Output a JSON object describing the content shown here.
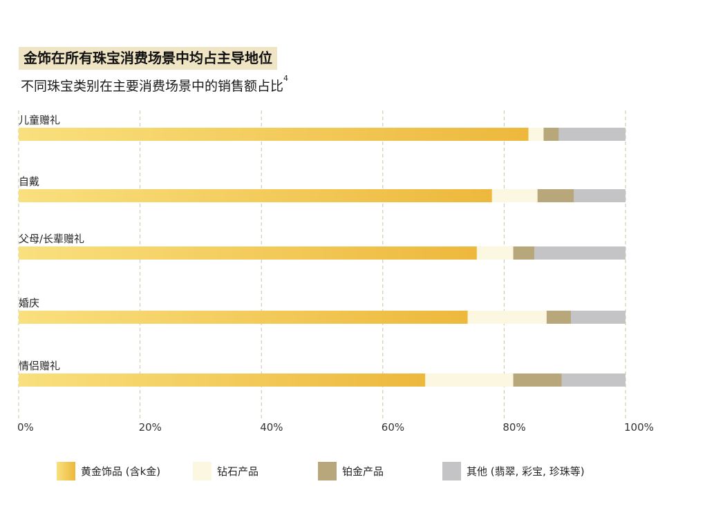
{
  "header": {
    "title": "金饰在所有珠宝消费场景中均占主导地位",
    "subtitle": "不同珠宝类别在主要消费场景中的销售额占比",
    "footnote": "4"
  },
  "chart_data": {
    "type": "bar",
    "orientation": "horizontal",
    "stacked": true,
    "title": "不同珠宝类别在主要消费场景中的销售额占比",
    "categories": [
      "儿童赠礼",
      "自戴",
      "父母/长辈赠礼",
      "婚庆",
      "情侣赠礼"
    ],
    "series": [
      {
        "name": "黄金饰品（含k金）",
        "color": "#f0c24a",
        "values": [
          84,
          78,
          75.5,
          74,
          67
        ]
      },
      {
        "name": "钻石产品",
        "color": "#fcf7e1",
        "values": [
          2.5,
          7.5,
          6,
          13,
          14.5
        ]
      },
      {
        "name": "铂金产品",
        "color": "#b8a77a",
        "values": [
          2.5,
          6,
          3.5,
          4,
          8
        ]
      },
      {
        "name": "其他（翡翠，彩宝，珍珠等）",
        "color": "#c4c3c6",
        "values": [
          11,
          8.5,
          15,
          9,
          10.5
        ]
      }
    ],
    "xlim": [
      0,
      100
    ],
    "xticks": [
      0,
      20,
      40,
      60,
      80,
      100
    ],
    "xtick_labels": [
      "0%",
      "20%",
      "40%",
      "60%",
      "80%",
      "100%"
    ],
    "grid": true,
    "grid_style": "dashed vertical",
    "legend_position": "bottom"
  },
  "legend": [
    {
      "label": "黄金饰品 (含k金)"
    },
    {
      "label": "钻石产品"
    },
    {
      "label": "铂金产品"
    },
    {
      "label": "其他 (翡翠, 彩宝, 珍珠等)"
    }
  ]
}
